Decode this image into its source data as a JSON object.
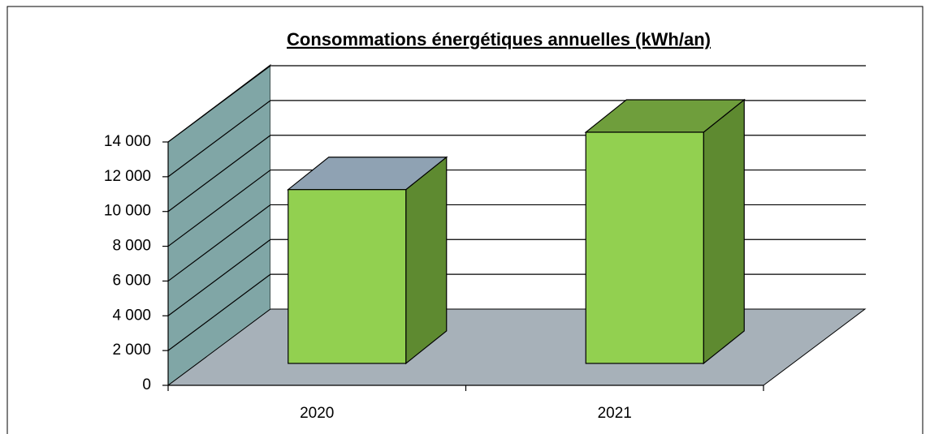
{
  "chart_data": {
    "type": "bar",
    "title": "Consommations énergétiques annuelles (kWh/an)",
    "categories": [
      "2020",
      "2021"
    ],
    "values": [
      10000,
      13300
    ],
    "color": "#92d050",
    "ylim": [
      0,
      14000
    ],
    "yticks": [
      0,
      {
        "value": 2000,
        "label": "2 000"
      },
      {
        "value": 4000,
        "label": "4 000"
      },
      {
        "value": 6000,
        "label": "6 000"
      },
      {
        "value": 8000,
        "label": "8 000"
      },
      {
        "value": 10000,
        "label": "10 000"
      },
      {
        "value": 12000,
        "label": "12 000"
      },
      {
        "value": 14000,
        "label": "14 000"
      }
    ],
    "grid": true
  }
}
